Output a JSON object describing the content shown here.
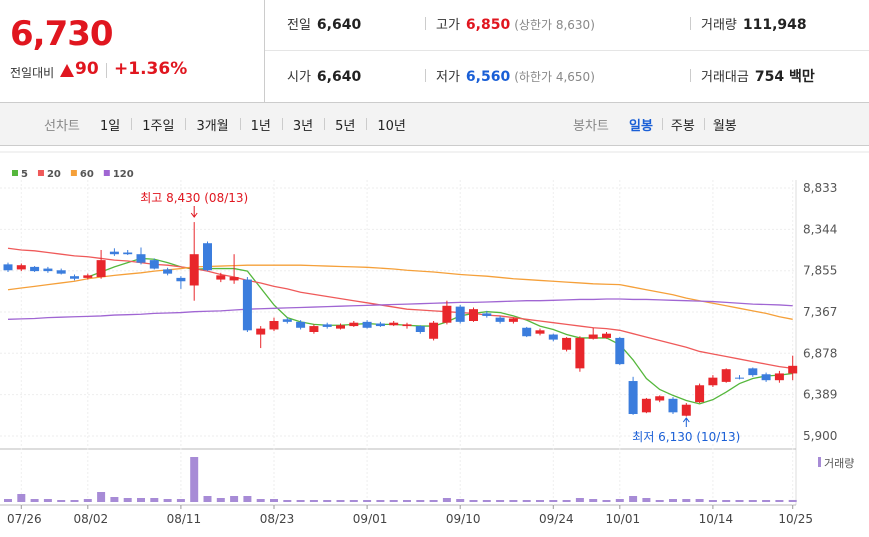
{
  "quote": {
    "price": "6,730",
    "change_label": "전일대비",
    "change": "90",
    "change_pct": "+1.36%",
    "rows": [
      [
        {
          "label": "전일",
          "value": "6,640"
        },
        {
          "label": "고가",
          "value": "6,850",
          "extra": "(상한가 8,630)"
        },
        {
          "label": "거래량",
          "value": "111,948"
        }
      ],
      [
        {
          "label": "시가",
          "value": "6,640"
        },
        {
          "label": "저가",
          "value": "6,560",
          "extra": "(하한가 4,650)"
        },
        {
          "label": "거래대금",
          "value": "754 백만"
        }
      ]
    ]
  },
  "tabs": {
    "line_label": "선차트",
    "line": [
      "1일",
      "1주일",
      "3개월",
      "1년",
      "3년",
      "5년",
      "10년"
    ],
    "candle_label": "봉차트",
    "candle": [
      "일봉",
      "주봉",
      "월봉"
    ]
  },
  "chart_data": {
    "type": "candlestick",
    "categories": [
      null,
      "07/26",
      null,
      null,
      null,
      null,
      "08/02",
      null,
      null,
      null,
      null,
      null,
      null,
      "08/11",
      null,
      null,
      null,
      null,
      null,
      null,
      "08/23",
      null,
      null,
      null,
      null,
      null,
      null,
      "09/01",
      null,
      null,
      null,
      null,
      null,
      null,
      "09/10",
      null,
      null,
      null,
      null,
      null,
      null,
      "09/24",
      null,
      null,
      null,
      null,
      "10/01",
      null,
      null,
      null,
      null,
      null,
      null,
      "10/14",
      null,
      null,
      null,
      null,
      null,
      "10/25"
    ],
    "open": [
      7930,
      7870,
      7900,
      7880,
      7860,
      7790,
      7770,
      7780,
      8080,
      8070,
      8050,
      7980,
      7870,
      7770,
      7680,
      8180,
      7750,
      7740,
      7750,
      7100,
      7160,
      7280,
      7250,
      7130,
      7220,
      7170,
      7200,
      7250,
      7230,
      7210,
      7200,
      7200,
      7050,
      7240,
      7430,
      7260,
      7350,
      7300,
      7250,
      7180,
      7110,
      7100,
      6920,
      6700,
      7050,
      7060,
      7060,
      6550,
      6180,
      6320,
      6340,
      6140,
      6300,
      6500,
      6540,
      6590,
      6700,
      6630,
      6560,
      6640
    ],
    "high": [
      7950,
      7940,
      7910,
      7900,
      7880,
      7810,
      7820,
      8100,
      8120,
      8100,
      8130,
      8000,
      7890,
      7790,
      8430,
      8200,
      7830,
      8050,
      7780,
      7200,
      7300,
      7300,
      7270,
      7220,
      7240,
      7230,
      7260,
      7270,
      7250,
      7260,
      7240,
      7210,
      7260,
      7500,
      7450,
      7420,
      7380,
      7320,
      7300,
      7190,
      7170,
      7110,
      7070,
      7080,
      7180,
      7130,
      7070,
      6600,
      6350,
      6380,
      6360,
      6290,
      6520,
      6620,
      6700,
      6620,
      6710,
      6650,
      6670,
      6850
    ],
    "low": [
      7840,
      7850,
      7840,
      7830,
      7810,
      7740,
      7750,
      7760,
      8030,
      8040,
      7930,
      7870,
      7800,
      7640,
      7500,
      7850,
      7720,
      7700,
      7130,
      6940,
      7140,
      7230,
      7160,
      7110,
      7170,
      7160,
      7190,
      7170,
      7190,
      7200,
      7170,
      7110,
      7030,
      7220,
      7230,
      7250,
      7300,
      7230,
      7230,
      7070,
      7090,
      7020,
      6900,
      6660,
      7040,
      7050,
      6740,
      6150,
      6170,
      6300,
      6160,
      6130,
      6290,
      6480,
      6530,
      6570,
      6600,
      6540,
      6530,
      6560
    ],
    "close": [
      7860,
      7920,
      7850,
      7850,
      7820,
      7760,
      7800,
      7980,
      8050,
      8050,
      7950,
      7880,
      7820,
      7730,
      8050,
      7860,
      7800,
      7780,
      7150,
      7170,
      7260,
      7250,
      7180,
      7200,
      7190,
      7210,
      7240,
      7180,
      7200,
      7240,
      7220,
      7130,
      7240,
      7440,
      7250,
      7400,
      7320,
      7250,
      7290,
      7080,
      7150,
      7040,
      7060,
      7060,
      7100,
      7110,
      6750,
      6160,
      6340,
      6370,
      6180,
      6270,
      6500,
      6590,
      6690,
      6580,
      6620,
      6560,
      6640,
      6730
    ],
    "up_color": "#e8262b",
    "down_color": "#3b7ddd",
    "ylim": [
      5900,
      8833
    ],
    "yticks": [
      {
        "value": 5900,
        "label": "5,900"
      },
      {
        "value": 6389,
        "label": "6,389"
      },
      {
        "value": 6878,
        "label": "6,878"
      },
      {
        "value": 7367,
        "label": "7,367"
      },
      {
        "value": 7855,
        "label": "7,855"
      },
      {
        "value": 8344,
        "label": "8,344"
      },
      {
        "value": 8833,
        "label": "8,833"
      }
    ],
    "grid": true,
    "series": [
      {
        "name": "5",
        "color": "#55b73c",
        "values": [
          null,
          null,
          null,
          null,
          null,
          null,
          7780,
          7840,
          7900,
          7950,
          8000,
          7990,
          7950,
          7900,
          7870,
          7880,
          7880,
          7880,
          7850,
          7650,
          7450,
          7300,
          7250,
          7220,
          7210,
          7210,
          7220,
          7230,
          7220,
          7220,
          7210,
          7200,
          7200,
          7250,
          7320,
          7350,
          7370,
          7360,
          7320,
          7270,
          7200,
          7160,
          7100,
          7060,
          7060,
          7060,
          6980,
          6800,
          6580,
          6450,
          6380,
          6320,
          6280,
          6330,
          6420,
          6520,
          6580,
          6610,
          6620,
          6640
        ]
      },
      {
        "name": "20",
        "color": "#ef5a5a",
        "values": [
          8120,
          8100,
          8090,
          8070,
          8050,
          8030,
          8020,
          8000,
          7980,
          7970,
          7950,
          7930,
          7920,
          7900,
          7880,
          7850,
          7810,
          7780,
          7740,
          7710,
          7670,
          7640,
          7600,
          7575,
          7550,
          7525,
          7500,
          7475,
          7450,
          7425,
          7400,
          7390,
          7380,
          7370,
          7360,
          7350,
          7330,
          7320,
          7300,
          7280,
          7260,
          7240,
          7220,
          7200,
          7180,
          7170,
          7150,
          7110,
          7070,
          7030,
          6990,
          6950,
          6900,
          6870,
          6840,
          6810,
          6780,
          6750,
          6720,
          6700
        ]
      },
      {
        "name": "60",
        "color": "#f5a03a",
        "values": [
          7630,
          7650,
          7670,
          7690,
          7710,
          7730,
          7760,
          7780,
          7800,
          7815,
          7830,
          7850,
          7865,
          7880,
          7900,
          7905,
          7910,
          7915,
          7920,
          7920,
          7920,
          7920,
          7920,
          7915,
          7910,
          7905,
          7900,
          7895,
          7885,
          7875,
          7860,
          7850,
          7840,
          7825,
          7810,
          7800,
          7790,
          7775,
          7760,
          7750,
          7740,
          7730,
          7720,
          7710,
          7700,
          7695,
          7690,
          7660,
          7630,
          7600,
          7570,
          7530,
          7500,
          7470,
          7440,
          7410,
          7380,
          7350,
          7310,
          7280
        ]
      },
      {
        "name": "120",
        "color": "#a066d3",
        "values": [
          7280,
          7285,
          7290,
          7300,
          7305,
          7310,
          7315,
          7320,
          7330,
          7335,
          7340,
          7350,
          7355,
          7360,
          7370,
          7375,
          7380,
          7390,
          7400,
          7405,
          7410,
          7415,
          7420,
          7425,
          7430,
          7435,
          7440,
          7445,
          7450,
          7455,
          7460,
          7465,
          7470,
          7475,
          7480,
          7480,
          7485,
          7490,
          7495,
          7500,
          7500,
          7505,
          7510,
          7515,
          7515,
          7520,
          7520,
          7515,
          7515,
          7510,
          7505,
          7500,
          7495,
          7490,
          7480,
          7470,
          7460,
          7455,
          7450,
          7440
        ]
      }
    ],
    "volume": {
      "name": "거래량",
      "color": "#a78bd6",
      "values": [
        165000,
        440000,
        165000,
        165000,
        110000,
        110000,
        165000,
        550000,
        275000,
        220000,
        220000,
        220000,
        165000,
        165000,
        2475000,
        330000,
        220000,
        330000,
        330000,
        165000,
        165000,
        110000,
        110000,
        110000,
        110000,
        110000,
        110000,
        110000,
        110000,
        110000,
        110000,
        110000,
        110000,
        220000,
        165000,
        110000,
        110000,
        110000,
        110000,
        110000,
        110000,
        110000,
        110000,
        220000,
        165000,
        110000,
        165000,
        330000,
        220000,
        110000,
        165000,
        165000,
        165000,
        110000,
        110000,
        110000,
        110000,
        110000,
        110000,
        111948
      ]
    },
    "annotations": [
      "최고 8,430 (08/13)",
      "최저 6,130 (10/13)"
    ]
  }
}
